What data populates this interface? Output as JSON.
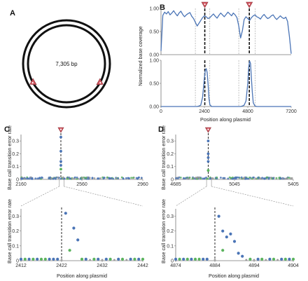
{
  "panel_labels": [
    "A",
    "B",
    "C",
    "D"
  ],
  "colors": {
    "blue": "#4a74b6",
    "green": "#5bb35e",
    "gray": "#9a9a9a",
    "marker": "#d0545e",
    "axis": "#777777"
  },
  "chart_data": [
    {
      "panel": "A",
      "type": "plasmid-map",
      "center_label": "7,305 bp",
      "plasmid_length": 7305,
      "marker_positions": [
        2422,
        4884
      ]
    },
    {
      "panel": "B-top",
      "type": "line",
      "ylabel": "Normalized base coverage",
      "xlabel": "",
      "xlim": [
        0,
        7200
      ],
      "ylim": [
        0,
        1
      ],
      "yticks": [
        "0.00",
        "0.50",
        "1.00"
      ],
      "xticks": [],
      "marker_positions": [
        2422,
        4884
      ],
      "dashed_lines_bold": [
        2422,
        4884
      ],
      "dashed_lines_thin": [
        1900,
        2700,
        4300,
        5200
      ],
      "series": [
        {
          "x": [
            0,
            100,
            200,
            300,
            400,
            500,
            600,
            700,
            800,
            900,
            1000,
            1100,
            1200,
            1300,
            1400,
            1500,
            1600,
            1700,
            1800,
            1900,
            2000,
            2100,
            2200,
            2300,
            2400,
            2500,
            2600,
            2700,
            2800,
            2900,
            3000,
            3100,
            3200,
            3300,
            3400,
            3500,
            3600,
            3700,
            3800,
            3900,
            4000,
            4100,
            4200,
            4300,
            4400,
            4500,
            4600,
            4700,
            4800,
            4900,
            5000,
            5100,
            5200,
            5300,
            5400,
            5500,
            5600,
            5700,
            5800,
            5900,
            6000,
            6100,
            6200,
            6300,
            6400,
            6500,
            6600,
            6700,
            6800,
            6900,
            7000,
            7100,
            7200
          ],
          "values": [
            0.08,
            0.85,
            0.92,
            0.88,
            0.93,
            0.86,
            0.9,
            0.95,
            0.89,
            0.84,
            0.9,
            0.94,
            0.87,
            0.82,
            0.86,
            0.89,
            0.91,
            0.83,
            0.78,
            0.7,
            0.62,
            0.68,
            0.74,
            0.8,
            0.84,
            0.82,
            0.78,
            0.8,
            0.84,
            0.88,
            0.83,
            0.79,
            0.85,
            0.9,
            0.86,
            0.82,
            0.87,
            0.92,
            0.88,
            0.84,
            0.9,
            0.86,
            0.8,
            0.62,
            0.36,
            0.52,
            0.76,
            0.82,
            0.78,
            0.74,
            0.8,
            0.84,
            0.86,
            0.82,
            0.8,
            0.77,
            0.83,
            0.87,
            0.82,
            0.78,
            0.8,
            0.84,
            0.86,
            0.8,
            0.76,
            0.8,
            0.84,
            0.8,
            0.78,
            0.81,
            0.72,
            0.4,
            0.02
          ]
        }
      ]
    },
    {
      "panel": "B-bottom",
      "type": "line",
      "ylabel": "",
      "xlabel": "Position along plasmid",
      "xlim": [
        0,
        7200
      ],
      "ylim": [
        0,
        1
      ],
      "yticks": [
        "0.00",
        "0.50",
        "1.00"
      ],
      "xticks": [
        "0",
        "2400",
        "4800",
        "7200"
      ],
      "xtick_values": [
        0,
        2400,
        4800,
        7200
      ],
      "marker_positions": [
        2422,
        4884
      ],
      "dashed_lines_bold": [
        2422,
        4884
      ],
      "dashed_lines_thin": [
        1900,
        2700,
        4300,
        5200
      ],
      "series": [
        {
          "x": [
            0,
            1800,
            2000,
            2100,
            2200,
            2300,
            2400,
            2450,
            2500,
            2550,
            2600,
            2650,
            2700,
            2800,
            4200,
            4400,
            4500,
            4600,
            4700,
            4800,
            4850,
            4900,
            4950,
            5000,
            5050,
            5100,
            5200,
            5300,
            7200
          ],
          "values": [
            0,
            0,
            0,
            0.01,
            0.03,
            0.2,
            0.62,
            0.78,
            0.82,
            0.74,
            0.5,
            0.18,
            0.04,
            0,
            0,
            0,
            0.01,
            0.03,
            0.12,
            0.5,
            0.85,
            0.98,
            0.93,
            0.6,
            0.3,
            0.08,
            0.01,
            0,
            0
          ]
        }
      ]
    },
    {
      "panel": "C-top",
      "type": "scatter",
      "ylabel": "Base call transition error rate",
      "xlim": [
        2160,
        2960
      ],
      "ylim": [
        0,
        0.35
      ],
      "yticks": [
        "0",
        "0.1",
        "0.2",
        "0.3"
      ],
      "xticks": [
        "2160",
        "2560",
        "2960"
      ],
      "xtick_values": [
        2160,
        2560,
        2960
      ],
      "marker_position": 2422,
      "spike": {
        "blue": [
          0.33,
          0.22,
          0.14,
          0.11
        ],
        "green": [
          0.08
        ]
      }
    },
    {
      "panel": "C-bottom",
      "type": "scatter",
      "ylabel": "Base call transition error rate",
      "xlabel": "Position along plasmid",
      "xlim": [
        2412,
        2442
      ],
      "ylim": [
        0,
        0.35
      ],
      "yticks": [
        "0",
        "0.1",
        "0.2",
        "0.3"
      ],
      "xticks": [
        "2412",
        "2422",
        "2432",
        "2442"
      ],
      "xtick_values": [
        2412,
        2422,
        2432,
        2442
      ],
      "marker_position": 2422,
      "series": [
        {
          "color": "blue",
          "x": [
            2412,
            2414,
            2416,
            2419,
            2420,
            2421,
            2423,
            2425,
            2426,
            2428,
            2431,
            2433,
            2436,
            2439,
            2441
          ],
          "values": [
            0.01,
            0.01,
            0.01,
            0.01,
            0.01,
            0.01,
            0.32,
            0.22,
            0.14,
            0.01,
            0.01,
            0.01,
            0.01,
            0.01,
            0.01
          ]
        },
        {
          "color": "green",
          "x": [
            2413,
            2415,
            2417,
            2418,
            2424,
            2427,
            2430,
            2434,
            2437,
            2440,
            2442
          ],
          "values": [
            0.01,
            0.01,
            0.01,
            0.01,
            0.07,
            0.01,
            0.01,
            0.01,
            0.01,
            0.01,
            0.01
          ]
        },
        {
          "color": "gray",
          "x": [
            2422,
            2429,
            2432,
            2435,
            2438
          ],
          "values": [
            0.005,
            0.005,
            0.005,
            0.005,
            0.005
          ]
        }
      ]
    },
    {
      "panel": "D-top",
      "type": "scatter",
      "ylabel": "Base call transition error rate",
      "xlim": [
        4685,
        5405
      ],
      "ylim": [
        0,
        0.35
      ],
      "yticks": [
        "0",
        "0.1",
        "0.2",
        "0.3"
      ],
      "xticks": [
        "4685",
        "5045",
        "5405"
      ],
      "xtick_values": [
        4685,
        5045,
        5405
      ],
      "marker_position": 4884,
      "spike": {
        "blue": [
          0.3,
          0.2,
          0.17,
          0.14
        ],
        "green": [
          0.07
        ]
      }
    },
    {
      "panel": "D-bottom",
      "type": "scatter",
      "ylabel": "Base call transition error rate",
      "xlabel": "Position along plasmid",
      "xlim": [
        4874,
        4904
      ],
      "ylim": [
        0,
        0.35
      ],
      "yticks": [
        "0",
        "0.1",
        "0.2",
        "0.3"
      ],
      "xticks": [
        "4874",
        "4884",
        "4894",
        "4904"
      ],
      "xtick_values": [
        4874,
        4884,
        4894,
        4904
      ],
      "marker_position": 4884,
      "series": [
        {
          "color": "blue",
          "x": [
            4874,
            4876,
            4878,
            4881,
            4882,
            4885,
            4886,
            4887,
            4888,
            4889,
            4890,
            4891,
            4895,
            4898,
            4901,
            4903
          ],
          "values": [
            0.01,
            0.01,
            0.01,
            0.01,
            0.01,
            0.3,
            0.2,
            0.16,
            0.18,
            0.13,
            0.05,
            0.03,
            0.01,
            0.01,
            0.01,
            0.01
          ]
        },
        {
          "color": "green",
          "x": [
            4875,
            4877,
            4879,
            4880,
            4886,
            4893,
            4896,
            4899,
            4902,
            4904
          ],
          "values": [
            0.01,
            0.01,
            0.01,
            0.01,
            0.07,
            0.01,
            0.01,
            0.01,
            0.01,
            0.01
          ]
        },
        {
          "color": "gray",
          "x": [
            4884,
            4892,
            4894,
            4897,
            4900
          ],
          "values": [
            0.005,
            0.005,
            0.005,
            0.005,
            0.005
          ]
        }
      ]
    }
  ]
}
